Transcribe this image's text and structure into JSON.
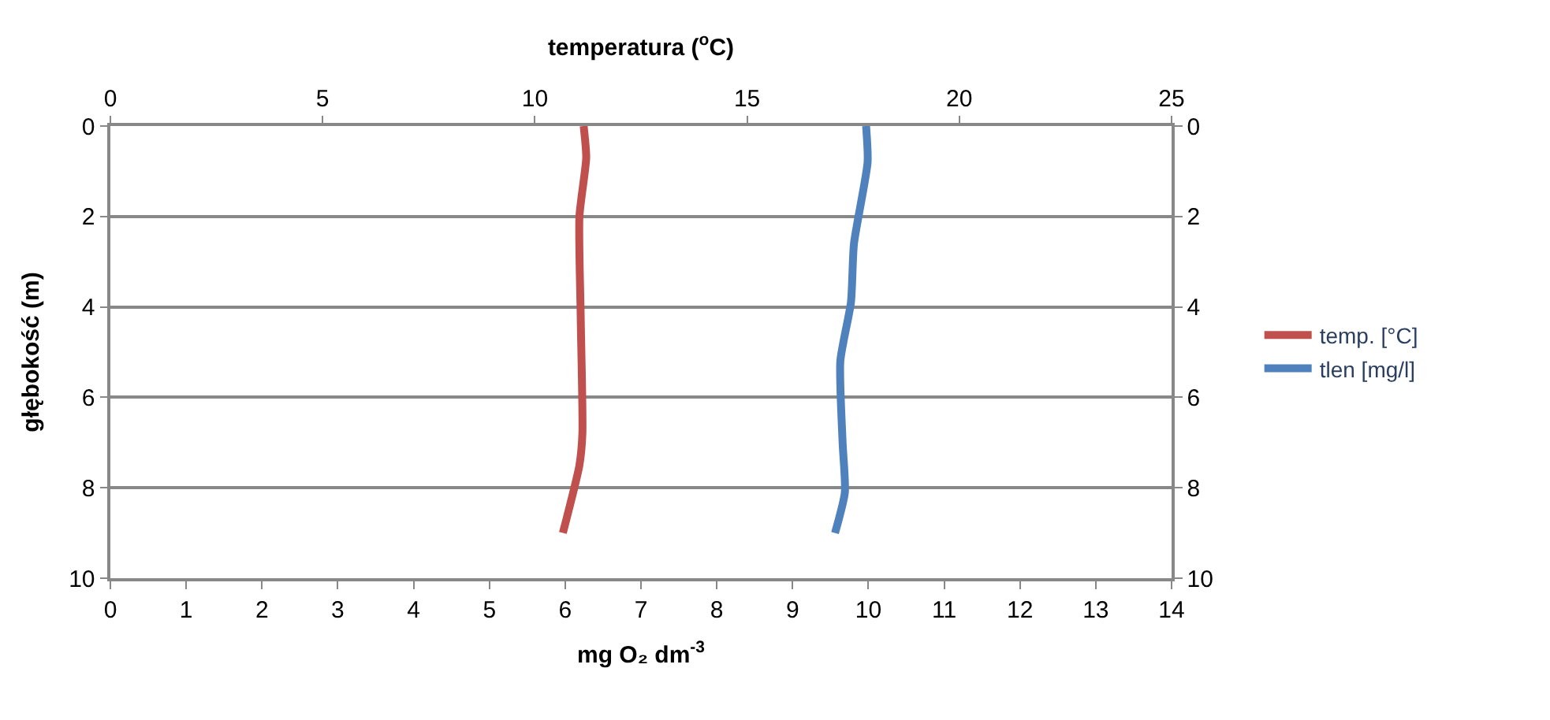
{
  "chart_data": {
    "type": "line",
    "x2label": "temperatura ($^{o}$C)",
    "xlabel": "mg O₂ dm$^{-3}$",
    "ylabel": "głębokość (m)",
    "series": [
      {
        "name": "temp. [°C]",
        "color": "#c0504d",
        "axis": "x2",
        "x": [
          11.15,
          11.21,
          11.05,
          11.08,
          11.12,
          11.05,
          10.66
        ],
        "values": [
          0,
          0.7,
          2,
          4.2,
          6.8,
          7.5,
          9
        ]
      },
      {
        "name": "tlen [mg/l]",
        "color": "#4f81bd",
        "x": [
          9.97,
          9.99,
          9.81,
          9.77,
          9.63,
          9.66,
          9.69,
          9.56
        ],
        "values": [
          0,
          0.8,
          2.6,
          3.9,
          5.2,
          7,
          8.1,
          9
        ]
      }
    ],
    "xlim": [
      0,
      14
    ],
    "xticks": [
      0,
      1,
      2,
      3,
      4,
      5,
      6,
      7,
      8,
      9,
      10,
      11,
      12,
      13,
      14
    ],
    "x2lim": [
      0,
      25
    ],
    "x2ticks": [
      0,
      5,
      10,
      15,
      20,
      25
    ],
    "ylim": [
      10,
      0
    ],
    "yticks": [
      0,
      2,
      4,
      6,
      8,
      10
    ],
    "y2lim": [
      10,
      0
    ],
    "y2ticks": [
      0,
      2,
      4,
      6,
      8,
      10
    ],
    "grid": "y",
    "legend": "right",
    "marker": "none",
    "line_style": "solid"
  }
}
